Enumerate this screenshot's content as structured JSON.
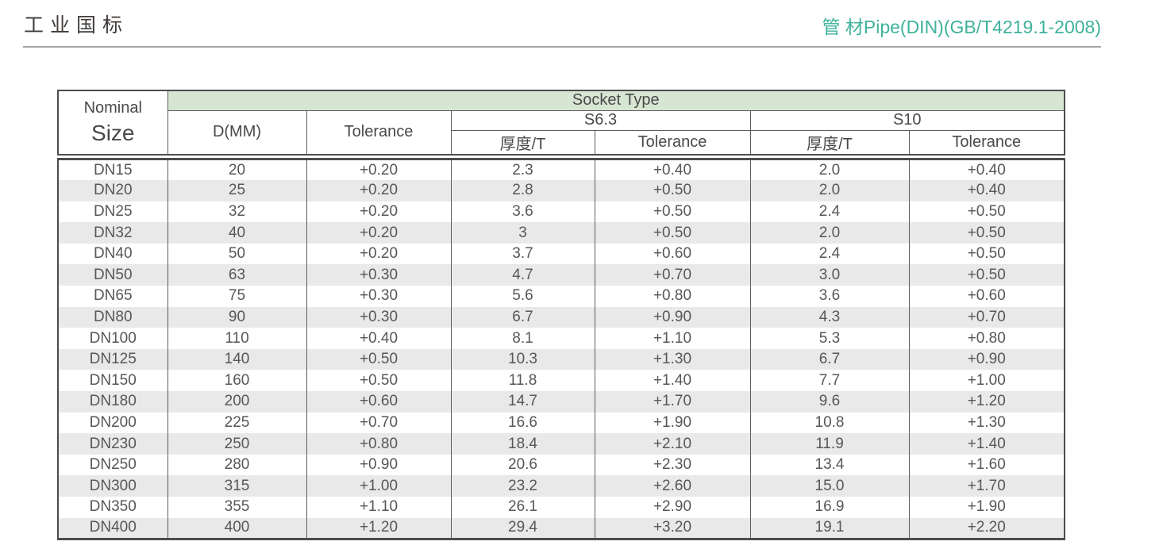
{
  "page": {
    "title_left": "工业国标",
    "title_right": "管 材Pipe(DIN)(GB/T4219.1-2008)",
    "colors": {
      "accent_teal": "#3fb29b",
      "header_green": "#d7e6d3",
      "row_alt_gray": "#e9e9e9",
      "border_dark": "#4c4c4c",
      "text_gray": "#57575a"
    }
  },
  "table": {
    "header": {
      "nominal_line1": "Nominal",
      "nominal_line2": "Size",
      "socket_type": "Socket Type",
      "d_mm": "D(MM)",
      "tolerance": "Tolerance",
      "s63": "S6.3",
      "s10": "S10",
      "s63_thickness": "厚度/T",
      "s63_tolerance": "Tolerance",
      "s10_thickness": "厚度/T",
      "s10_tolerance": "Tolerance"
    },
    "rows": [
      [
        "DN15",
        "20",
        "+0.20",
        "2.3",
        "+0.40",
        "2.0",
        "+0.40"
      ],
      [
        "DN20",
        "25",
        "+0.20",
        "2.8",
        "+0.50",
        "2.0",
        "+0.40"
      ],
      [
        "DN25",
        "32",
        "+0.20",
        "3.6",
        "+0.50",
        "2.4",
        "+0.50"
      ],
      [
        "DN32",
        "40",
        "+0.20",
        "3",
        "+0.50",
        "2.0",
        "+0.50"
      ],
      [
        "DN40",
        "50",
        "+0.20",
        "3.7",
        "+0.60",
        "2.4",
        "+0.50"
      ],
      [
        "DN50",
        "63",
        "+0.30",
        "4.7",
        "+0.70",
        "3.0",
        "+0.50"
      ],
      [
        "DN65",
        "75",
        "+0.30",
        "5.6",
        "+0.80",
        "3.6",
        "+0.60"
      ],
      [
        "DN80",
        "90",
        "+0.30",
        "6.7",
        "+0.90",
        "4.3",
        "+0.70"
      ],
      [
        "DN100",
        "110",
        "+0.40",
        "8.1",
        "+1.10",
        "5.3",
        "+0.80"
      ],
      [
        "DN125",
        "140",
        "+0.50",
        "10.3",
        "+1.30",
        "6.7",
        "+0.90"
      ],
      [
        "DN150",
        "160",
        "+0.50",
        "11.8",
        "+1.40",
        "7.7",
        "+1.00"
      ],
      [
        "DN180",
        "200",
        "+0.60",
        "14.7",
        "+1.70",
        "9.6",
        "+1.20"
      ],
      [
        "DN200",
        "225",
        "+0.70",
        "16.6",
        "+1.90",
        "10.8",
        "+1.30"
      ],
      [
        "DN230",
        "250",
        "+0.80",
        "18.4",
        "+2.10",
        "11.9",
        "+1.40"
      ],
      [
        "DN250",
        "280",
        "+0.90",
        "20.6",
        "+2.30",
        "13.4",
        "+1.60"
      ],
      [
        "DN300",
        "315",
        "+1.00",
        "23.2",
        "+2.60",
        "15.0",
        "+1.70"
      ],
      [
        "DN350",
        "355",
        "+1.10",
        "26.1",
        "+2.90",
        "16.9",
        "+1.90"
      ],
      [
        "DN400",
        "400",
        "+1.20",
        "29.4",
        "+3.20",
        "19.1",
        "+2.20"
      ]
    ]
  }
}
